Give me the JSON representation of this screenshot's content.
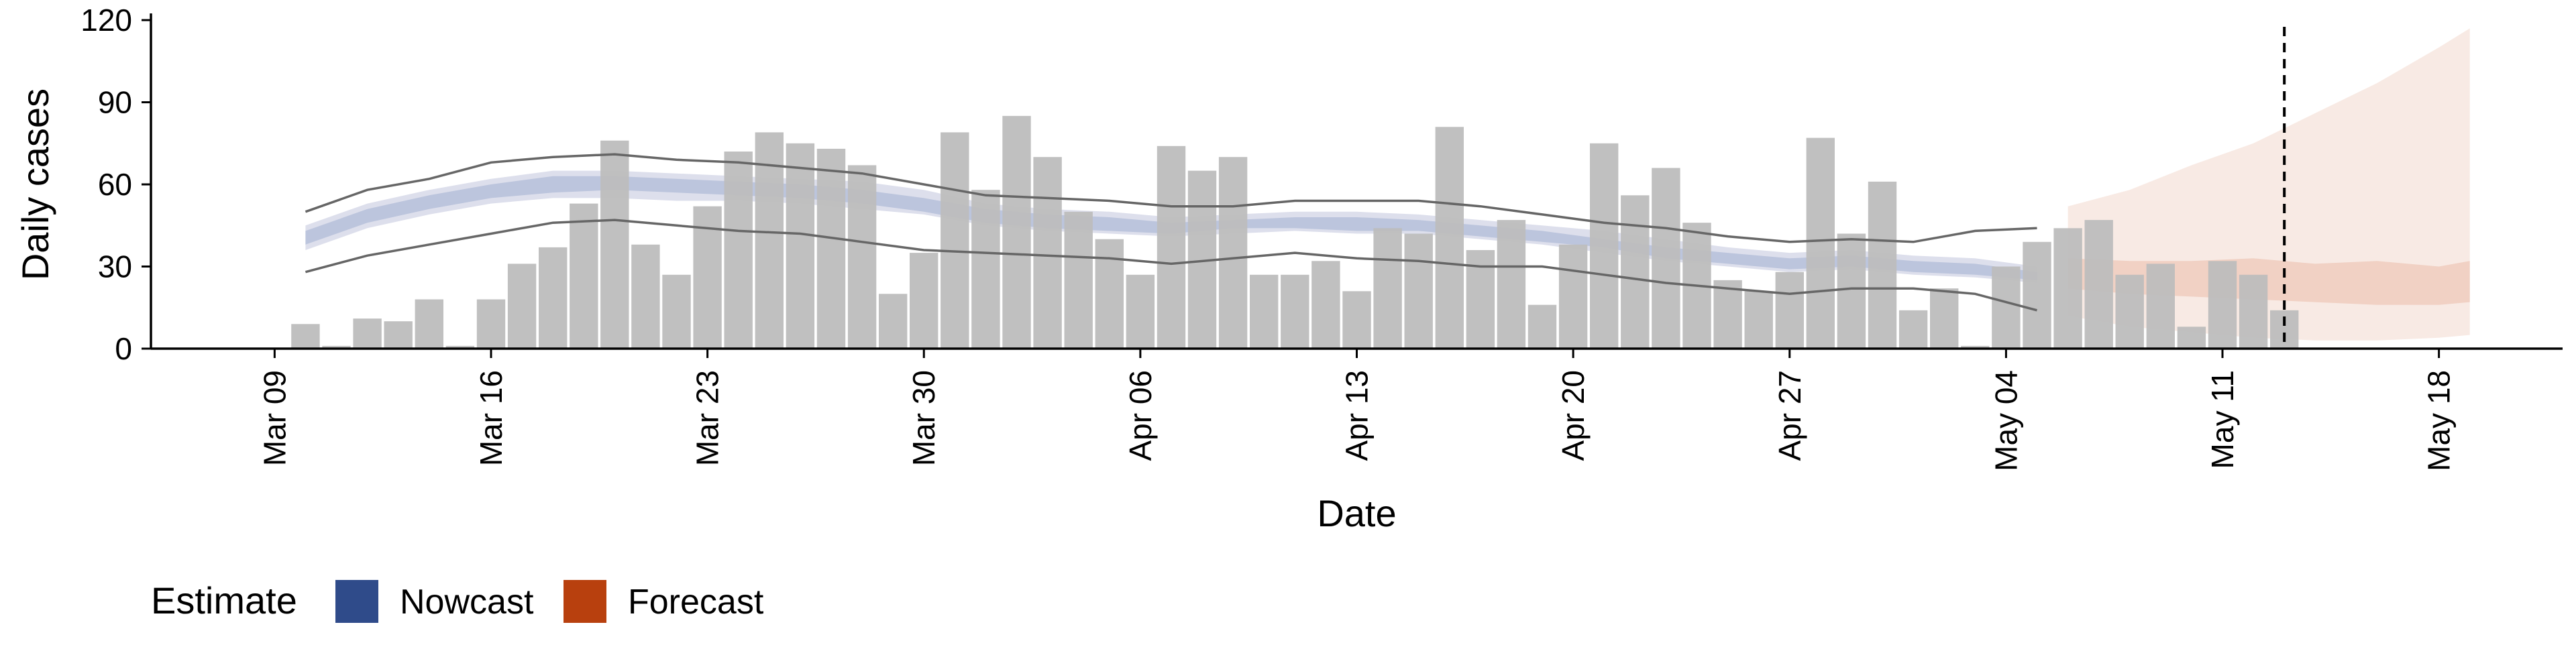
{
  "chart_data": {
    "type": "bar",
    "xlabel": "Date",
    "ylabel": "Daily cases",
    "ylim": [
      0,
      120
    ],
    "y_ticks": [
      0,
      30,
      60,
      90,
      120
    ],
    "x_ticks": [
      "Mar 09",
      "Mar 16",
      "Mar 23",
      "Mar 30",
      "Apr 06",
      "Apr 13",
      "Apr 20",
      "Apr 27",
      "May 04",
      "May 11",
      "May 18"
    ],
    "x_tick_dates": [
      "2020-03-09",
      "2020-03-16",
      "2020-03-23",
      "2020-03-30",
      "2020-04-06",
      "2020-04-13",
      "2020-04-20",
      "2020-04-27",
      "2020-05-04",
      "2020-05-11",
      "2020-05-18"
    ],
    "x_range_dates": [
      "2020-03-05",
      "2020-05-22"
    ],
    "grid": false,
    "legend": {
      "title": "Estimate",
      "position": "bottom-left",
      "entries": [
        {
          "name": "Nowcast",
          "color": "#2f4b8a"
        },
        {
          "name": "Forecast",
          "color": "#b8400e"
        }
      ]
    },
    "colors": {
      "bars": "#bdbdbd",
      "nowcast_outer": "#d9dcea",
      "nowcast_inner": "#b8c2dc",
      "forecast_outer": "#f7e6df",
      "forecast_inner": "#efcbbb",
      "bounds": "#666666",
      "vline": "#000000"
    },
    "vline_date": "2020-05-13",
    "reported_cases": {
      "dates": [
        "2020-03-10",
        "2020-03-11",
        "2020-03-12",
        "2020-03-13",
        "2020-03-14",
        "2020-03-15",
        "2020-03-16",
        "2020-03-17",
        "2020-03-18",
        "2020-03-19",
        "2020-03-20",
        "2020-03-21",
        "2020-03-22",
        "2020-03-23",
        "2020-03-24",
        "2020-03-25",
        "2020-03-26",
        "2020-03-27",
        "2020-03-28",
        "2020-03-29",
        "2020-03-30",
        "2020-03-31",
        "2020-04-01",
        "2020-04-02",
        "2020-04-03",
        "2020-04-04",
        "2020-04-05",
        "2020-04-06",
        "2020-04-07",
        "2020-04-08",
        "2020-04-09",
        "2020-04-10",
        "2020-04-11",
        "2020-04-12",
        "2020-04-13",
        "2020-04-14",
        "2020-04-15",
        "2020-04-16",
        "2020-04-17",
        "2020-04-18",
        "2020-04-19",
        "2020-04-20",
        "2020-04-21",
        "2020-04-22",
        "2020-04-23",
        "2020-04-24",
        "2020-04-25",
        "2020-04-26",
        "2020-04-27",
        "2020-04-28",
        "2020-04-29",
        "2020-04-30",
        "2020-05-01",
        "2020-05-02",
        "2020-05-03",
        "2020-05-04",
        "2020-05-05",
        "2020-05-06",
        "2020-05-07",
        "2020-05-08",
        "2020-05-09",
        "2020-05-10",
        "2020-05-11",
        "2020-05-12",
        "2020-05-13"
      ],
      "values": [
        9,
        1,
        11,
        10,
        18,
        1,
        18,
        31,
        37,
        53,
        76,
        38,
        27,
        52,
        72,
        79,
        75,
        73,
        67,
        20,
        35,
        79,
        58,
        85,
        70,
        50,
        40,
        27,
        74,
        65,
        70,
        27,
        27,
        32,
        21,
        44,
        42,
        81,
        36,
        47,
        16,
        38,
        75,
        56,
        66,
        46,
        25,
        21,
        28,
        77,
        42,
        61,
        14,
        22,
        1,
        30,
        39,
        44,
        47,
        27,
        31,
        8,
        32,
        27,
        14
      ]
    },
    "nowcast_band": {
      "dates": [
        "2020-03-10",
        "2020-03-12",
        "2020-03-14",
        "2020-03-16",
        "2020-03-18",
        "2020-03-20",
        "2020-03-22",
        "2020-03-24",
        "2020-03-26",
        "2020-03-28",
        "2020-03-30",
        "2020-04-01",
        "2020-04-03",
        "2020-04-05",
        "2020-04-07",
        "2020-04-09",
        "2020-04-11",
        "2020-04-13",
        "2020-04-15",
        "2020-04-17",
        "2020-04-19",
        "2020-04-21",
        "2020-04-23",
        "2020-04-25",
        "2020-04-27",
        "2020-04-29",
        "2020-05-01",
        "2020-05-03",
        "2020-05-05"
      ],
      "outer_low": [
        36,
        44,
        49,
        53,
        55,
        55,
        54,
        54,
        53,
        51,
        49,
        45,
        43,
        42,
        41,
        42,
        43,
        42,
        42,
        40,
        38,
        35,
        32,
        30,
        28,
        29,
        27,
        26,
        24
      ],
      "outer_high": [
        45,
        53,
        58,
        62,
        65,
        65,
        64,
        63,
        62,
        61,
        58,
        53,
        51,
        50,
        48,
        49,
        50,
        50,
        49,
        47,
        45,
        43,
        40,
        37,
        35,
        36,
        34,
        33,
        30
      ],
      "inner_low": [
        38,
        46,
        51,
        55,
        57,
        58,
        57,
        56,
        55,
        53,
        50,
        46,
        44,
        43,
        42,
        44,
        44,
        43,
        43,
        41,
        39,
        37,
        33,
        31,
        29,
        30,
        28,
        27,
        25
      ],
      "inner_high": [
        43,
        51,
        56,
        60,
        63,
        63,
        62,
        61,
        60,
        58,
        55,
        51,
        49,
        48,
        46,
        47,
        48,
        48,
        47,
        45,
        43,
        40,
        37,
        35,
        33,
        34,
        32,
        31,
        28
      ]
    },
    "bounds": {
      "dates": [
        "2020-03-10",
        "2020-03-12",
        "2020-03-14",
        "2020-03-16",
        "2020-03-18",
        "2020-03-20",
        "2020-03-22",
        "2020-03-24",
        "2020-03-26",
        "2020-03-28",
        "2020-03-30",
        "2020-04-01",
        "2020-04-03",
        "2020-04-05",
        "2020-04-07",
        "2020-04-09",
        "2020-04-11",
        "2020-04-13",
        "2020-04-15",
        "2020-04-17",
        "2020-04-19",
        "2020-04-21",
        "2020-04-23",
        "2020-04-25",
        "2020-04-27",
        "2020-04-29",
        "2020-05-01",
        "2020-05-03",
        "2020-05-05"
      ],
      "upper": [
        50,
        58,
        62,
        68,
        70,
        71,
        69,
        68,
        66,
        64,
        60,
        56,
        55,
        54,
        52,
        52,
        54,
        54,
        54,
        52,
        49,
        46,
        44,
        41,
        39,
        40,
        39,
        43,
        44
      ],
      "lower": [
        28,
        34,
        38,
        42,
        46,
        47,
        45,
        43,
        42,
        39,
        36,
        35,
        34,
        33,
        31,
        33,
        35,
        33,
        32,
        30,
        30,
        27,
        24,
        22,
        20,
        22,
        22,
        20,
        14
      ]
    },
    "forecast_band": {
      "dates": [
        "2020-05-06",
        "2020-05-08",
        "2020-05-10",
        "2020-05-12",
        "2020-05-14",
        "2020-05-16",
        "2020-05-18",
        "2020-05-19"
      ],
      "outer_low": [
        12,
        8,
        6,
        4,
        3,
        3,
        4,
        5
      ],
      "outer_high": [
        52,
        58,
        67,
        75,
        86,
        97,
        110,
        117
      ],
      "inner_low": [
        22,
        20,
        19,
        18,
        17,
        16,
        16,
        17
      ],
      "inner_high": [
        33,
        32,
        32,
        33,
        31,
        32,
        30,
        32
      ]
    }
  }
}
